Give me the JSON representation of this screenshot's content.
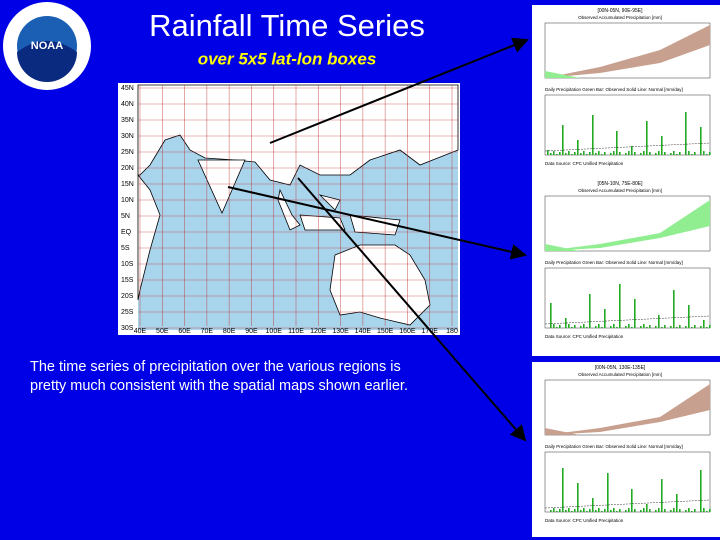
{
  "header": {
    "title": "Rainfall Time Series",
    "subtitle": "over 5x5 lat-lon boxes",
    "logo": "NOAA"
  },
  "map": {
    "lat_labels": [
      "45N",
      "40N",
      "35N",
      "30N",
      "25N",
      "20N",
      "15N",
      "10N",
      "5N",
      "EQ",
      "5S",
      "10S",
      "15S",
      "20S",
      "25S",
      "30S"
    ],
    "lon_labels": [
      "40E",
      "50E",
      "60E",
      "70E",
      "80E",
      "90E",
      "100E",
      "110E",
      "120E",
      "130E",
      "140E",
      "150E",
      "160E",
      "170E",
      "180"
    ]
  },
  "body": {
    "text": "The time series of  precipitation over the various regions is pretty much consistent with the spatial maps shown earlier."
  },
  "panels": [
    {
      "region": "[00N-05N, 90E-95E]",
      "cum_title": "Observed Accumulated Precipitation [mm]",
      "daily_title": "Daily Precipitation  Green Bar: Observed  Solid Line: Normal [mm/day]",
      "source": "Data Source: CPC Unified Precipitation"
    },
    {
      "region": "[05N-10N, 75E-80E]",
      "cum_title": "Observed Accumulated Precipitation [mm]",
      "daily_title": "Daily Precipitation  Green Bar: Observed  Solid Line: Normal [mm/day]",
      "source": "Data Source: CPC Unified Precipitation"
    },
    {
      "region": "[00N-05N, 130E-135E]",
      "cum_title": "Observed Accumulated Precipitation [mm]",
      "daily_title": "Daily Precipitation  Green Bar: Observed  Solid Line: Normal [mm/day]",
      "source": "Data Source: CPC Unified Precipitation"
    }
  ]
}
